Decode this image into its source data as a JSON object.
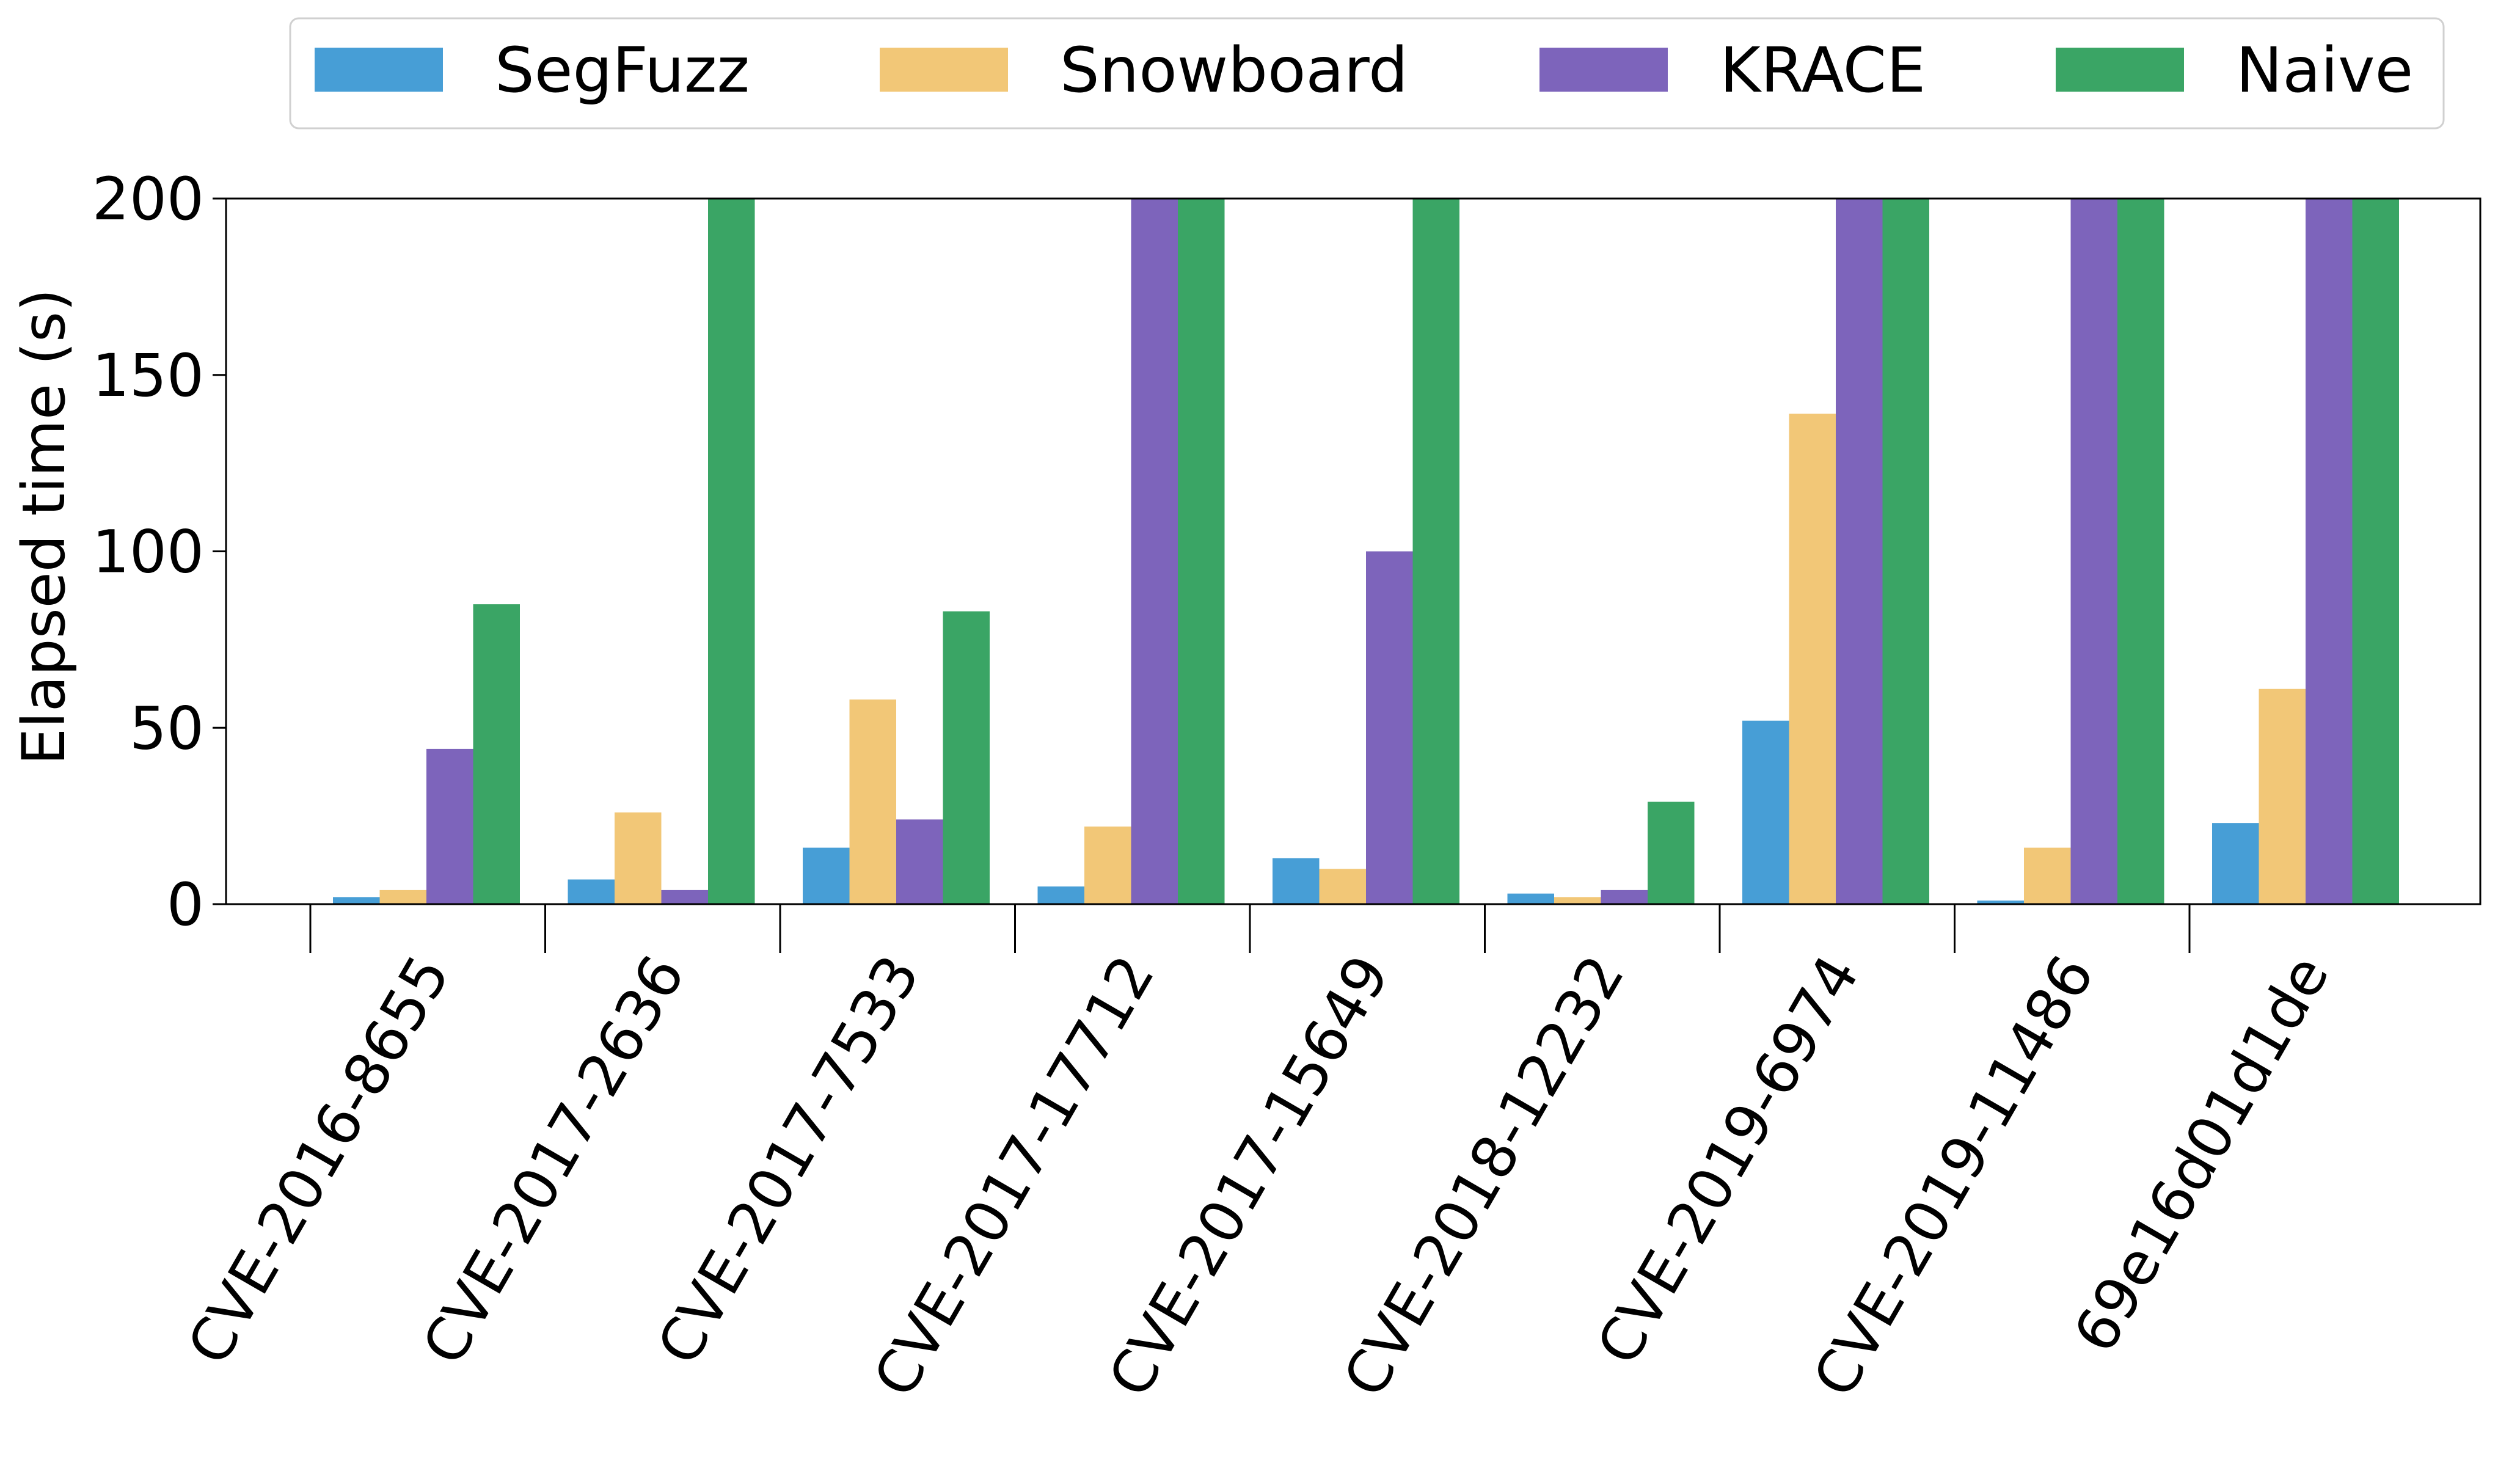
{
  "chart_data": {
    "type": "bar",
    "title": "",
    "xlabel": "",
    "ylabel": "Elapsed time (s)",
    "ylim": [
      0,
      200
    ],
    "yticks": [
      0,
      50,
      100,
      150,
      200
    ],
    "grid": false,
    "legend_position": "top",
    "categories": [
      "CVE-2016-8655",
      "CVE-2017-2636",
      "CVE-2017-7533",
      "CVE-2017-17712",
      "CVE-2017-15649",
      "CVE-2018-12232",
      "CVE-2019-6974",
      "CVE-2019-11486",
      "69e16d01d1de"
    ],
    "series": [
      {
        "name": "SegFuzz",
        "color": "#479ed6",
        "values": [
          2,
          7,
          16,
          5,
          13,
          3,
          52,
          1,
          23
        ]
      },
      {
        "name": "Snowboard",
        "color": "#f2c777",
        "values": [
          4,
          26,
          58,
          22,
          10,
          2,
          139,
          16,
          61
        ]
      },
      {
        "name": "KRACE",
        "color": "#7d64bb",
        "values": [
          44,
          4,
          24,
          200,
          100,
          4,
          200,
          200,
          200
        ]
      },
      {
        "name": "Naive",
        "color": "#3aa565",
        "values": [
          85,
          200,
          83,
          200,
          200,
          29,
          200,
          200,
          200
        ]
      }
    ]
  }
}
